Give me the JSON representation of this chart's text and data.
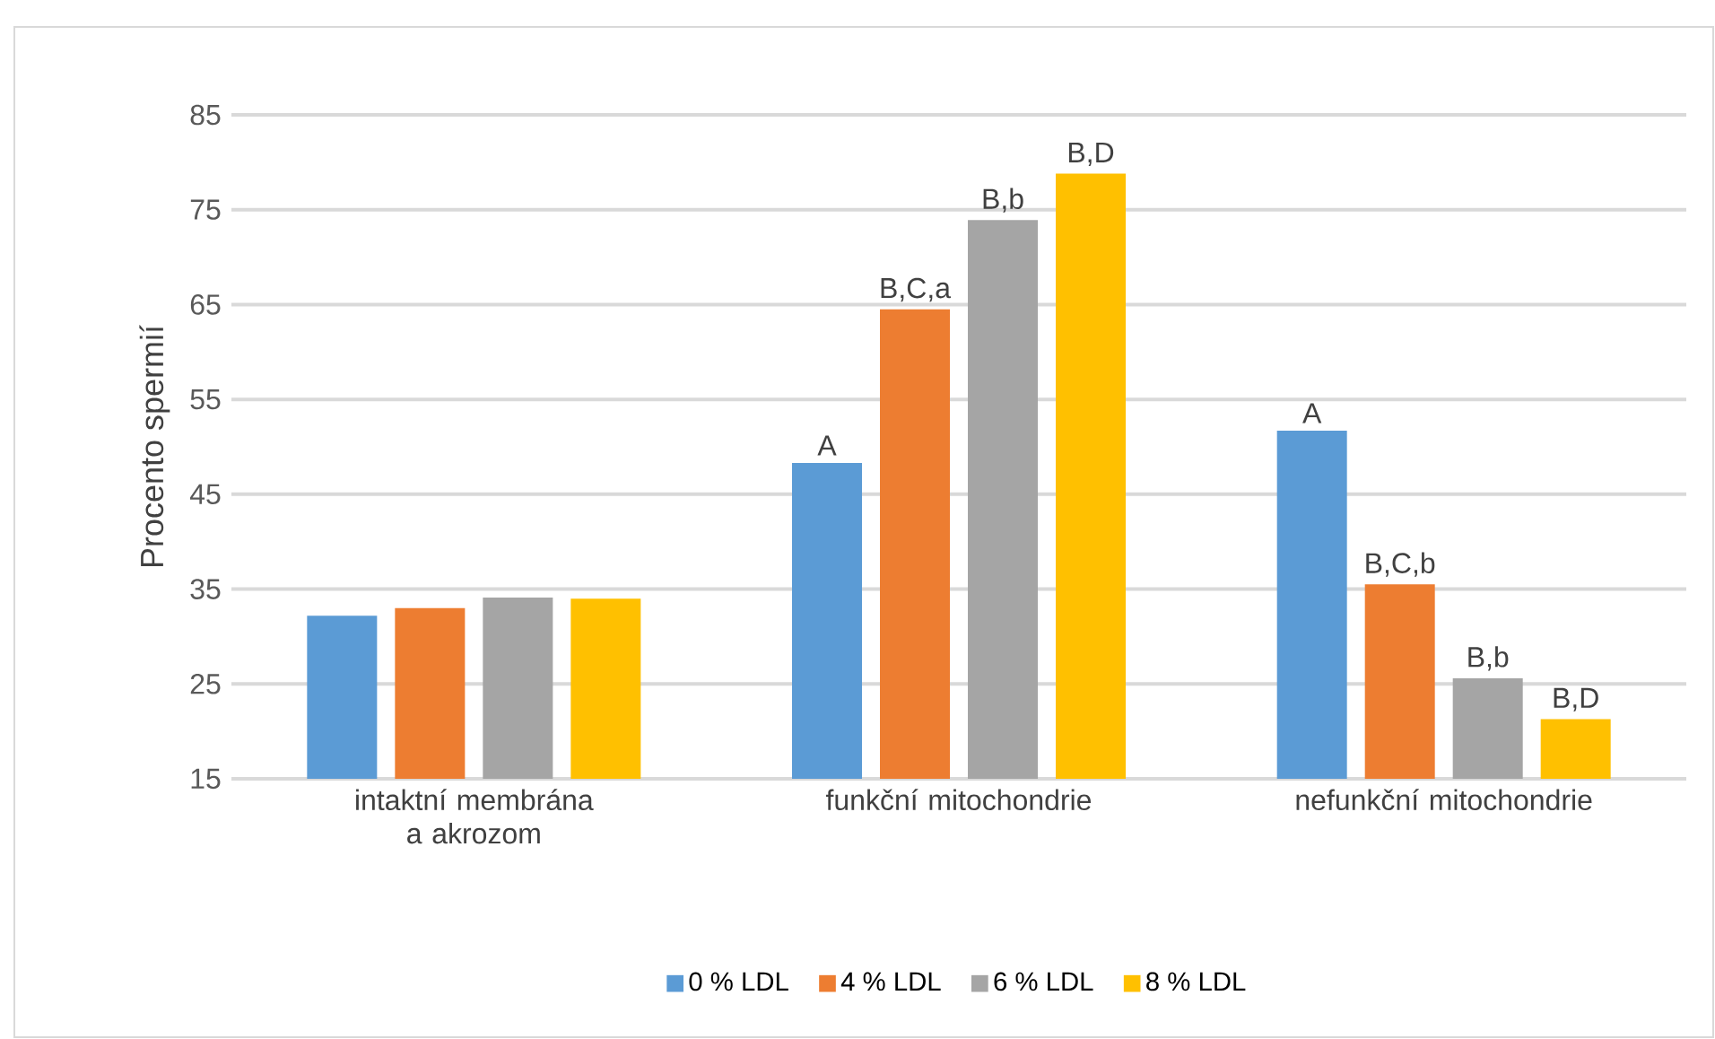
{
  "chart_data": {
    "type": "bar",
    "ylabel": "Procento spermií",
    "categories": [
      "intaktní membrána a akrozom",
      "funkční mitochondrie",
      "nefunkční mitochondrie"
    ],
    "series": [
      {
        "name": "0 % LDL",
        "color": "#5b9bd5",
        "values": [
          32.2,
          48.3,
          51.7
        ],
        "value_labels": [
          null,
          "A",
          "A"
        ]
      },
      {
        "name": "4 % LDL",
        "color": "#ed7d31",
        "values": [
          33.0,
          64.5,
          35.5
        ],
        "value_labels": [
          null,
          "B,C,a",
          "B,C,b"
        ]
      },
      {
        "name": "6 % LDL",
        "color": "#a5a5a5",
        "values": [
          34.1,
          73.9,
          25.6
        ],
        "value_labels": [
          null,
          "B,b",
          "B,b"
        ]
      },
      {
        "name": "8 % LDL",
        "color": "#ffc000",
        "values": [
          34.0,
          78.8,
          21.3
        ],
        "value_labels": [
          null,
          "B,D",
          "B,D"
        ]
      }
    ],
    "ylim": [
      15,
      85
    ],
    "yticks": [
      15,
      25,
      35,
      45,
      55,
      65,
      75,
      85
    ],
    "grid": "y",
    "legend": "bottom"
  }
}
